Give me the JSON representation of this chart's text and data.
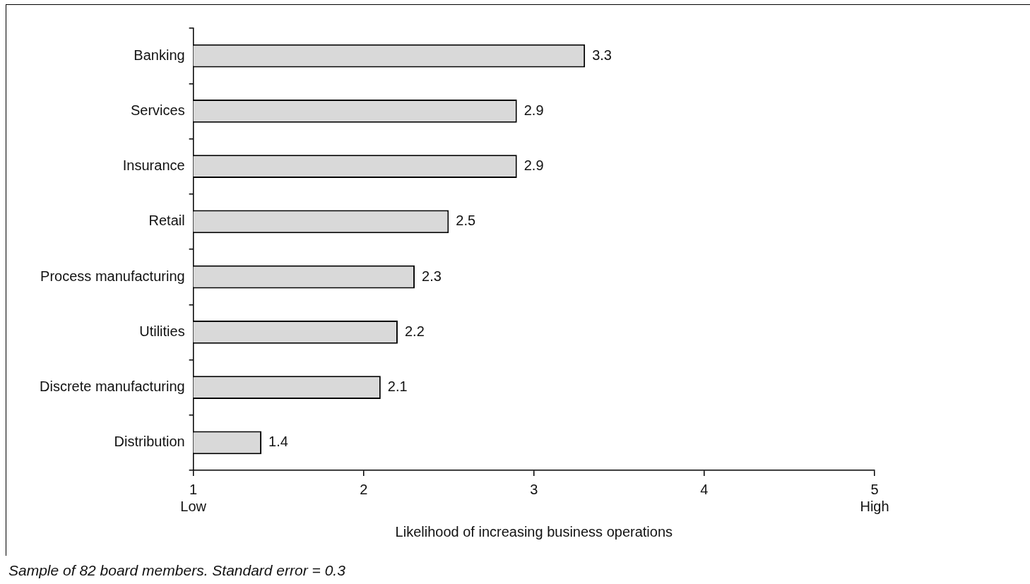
{
  "chart_data": {
    "type": "bar",
    "orientation": "horizontal",
    "categories": [
      "Banking",
      "Services",
      "Insurance",
      "Retail",
      "Process manufacturing",
      "Utilities",
      "Discrete manufacturing",
      "Distribution"
    ],
    "values": [
      3.3,
      2.9,
      2.9,
      2.5,
      2.3,
      2.2,
      2.1,
      1.4
    ],
    "color": "#d9d9d9",
    "xlim": [
      1,
      5
    ],
    "xticks": [
      {
        "value": 1,
        "label": "1\nLow"
      },
      2,
      3,
      4,
      {
        "value": 5,
        "label": "5\nHigh"
      }
    ],
    "xlabel": "Likelihood of increasing business operations",
    "data_labels": true,
    "grid": false,
    "legend": false,
    "annotations": [
      "Sample of 82 board members. Standard error = 0.3"
    ]
  }
}
